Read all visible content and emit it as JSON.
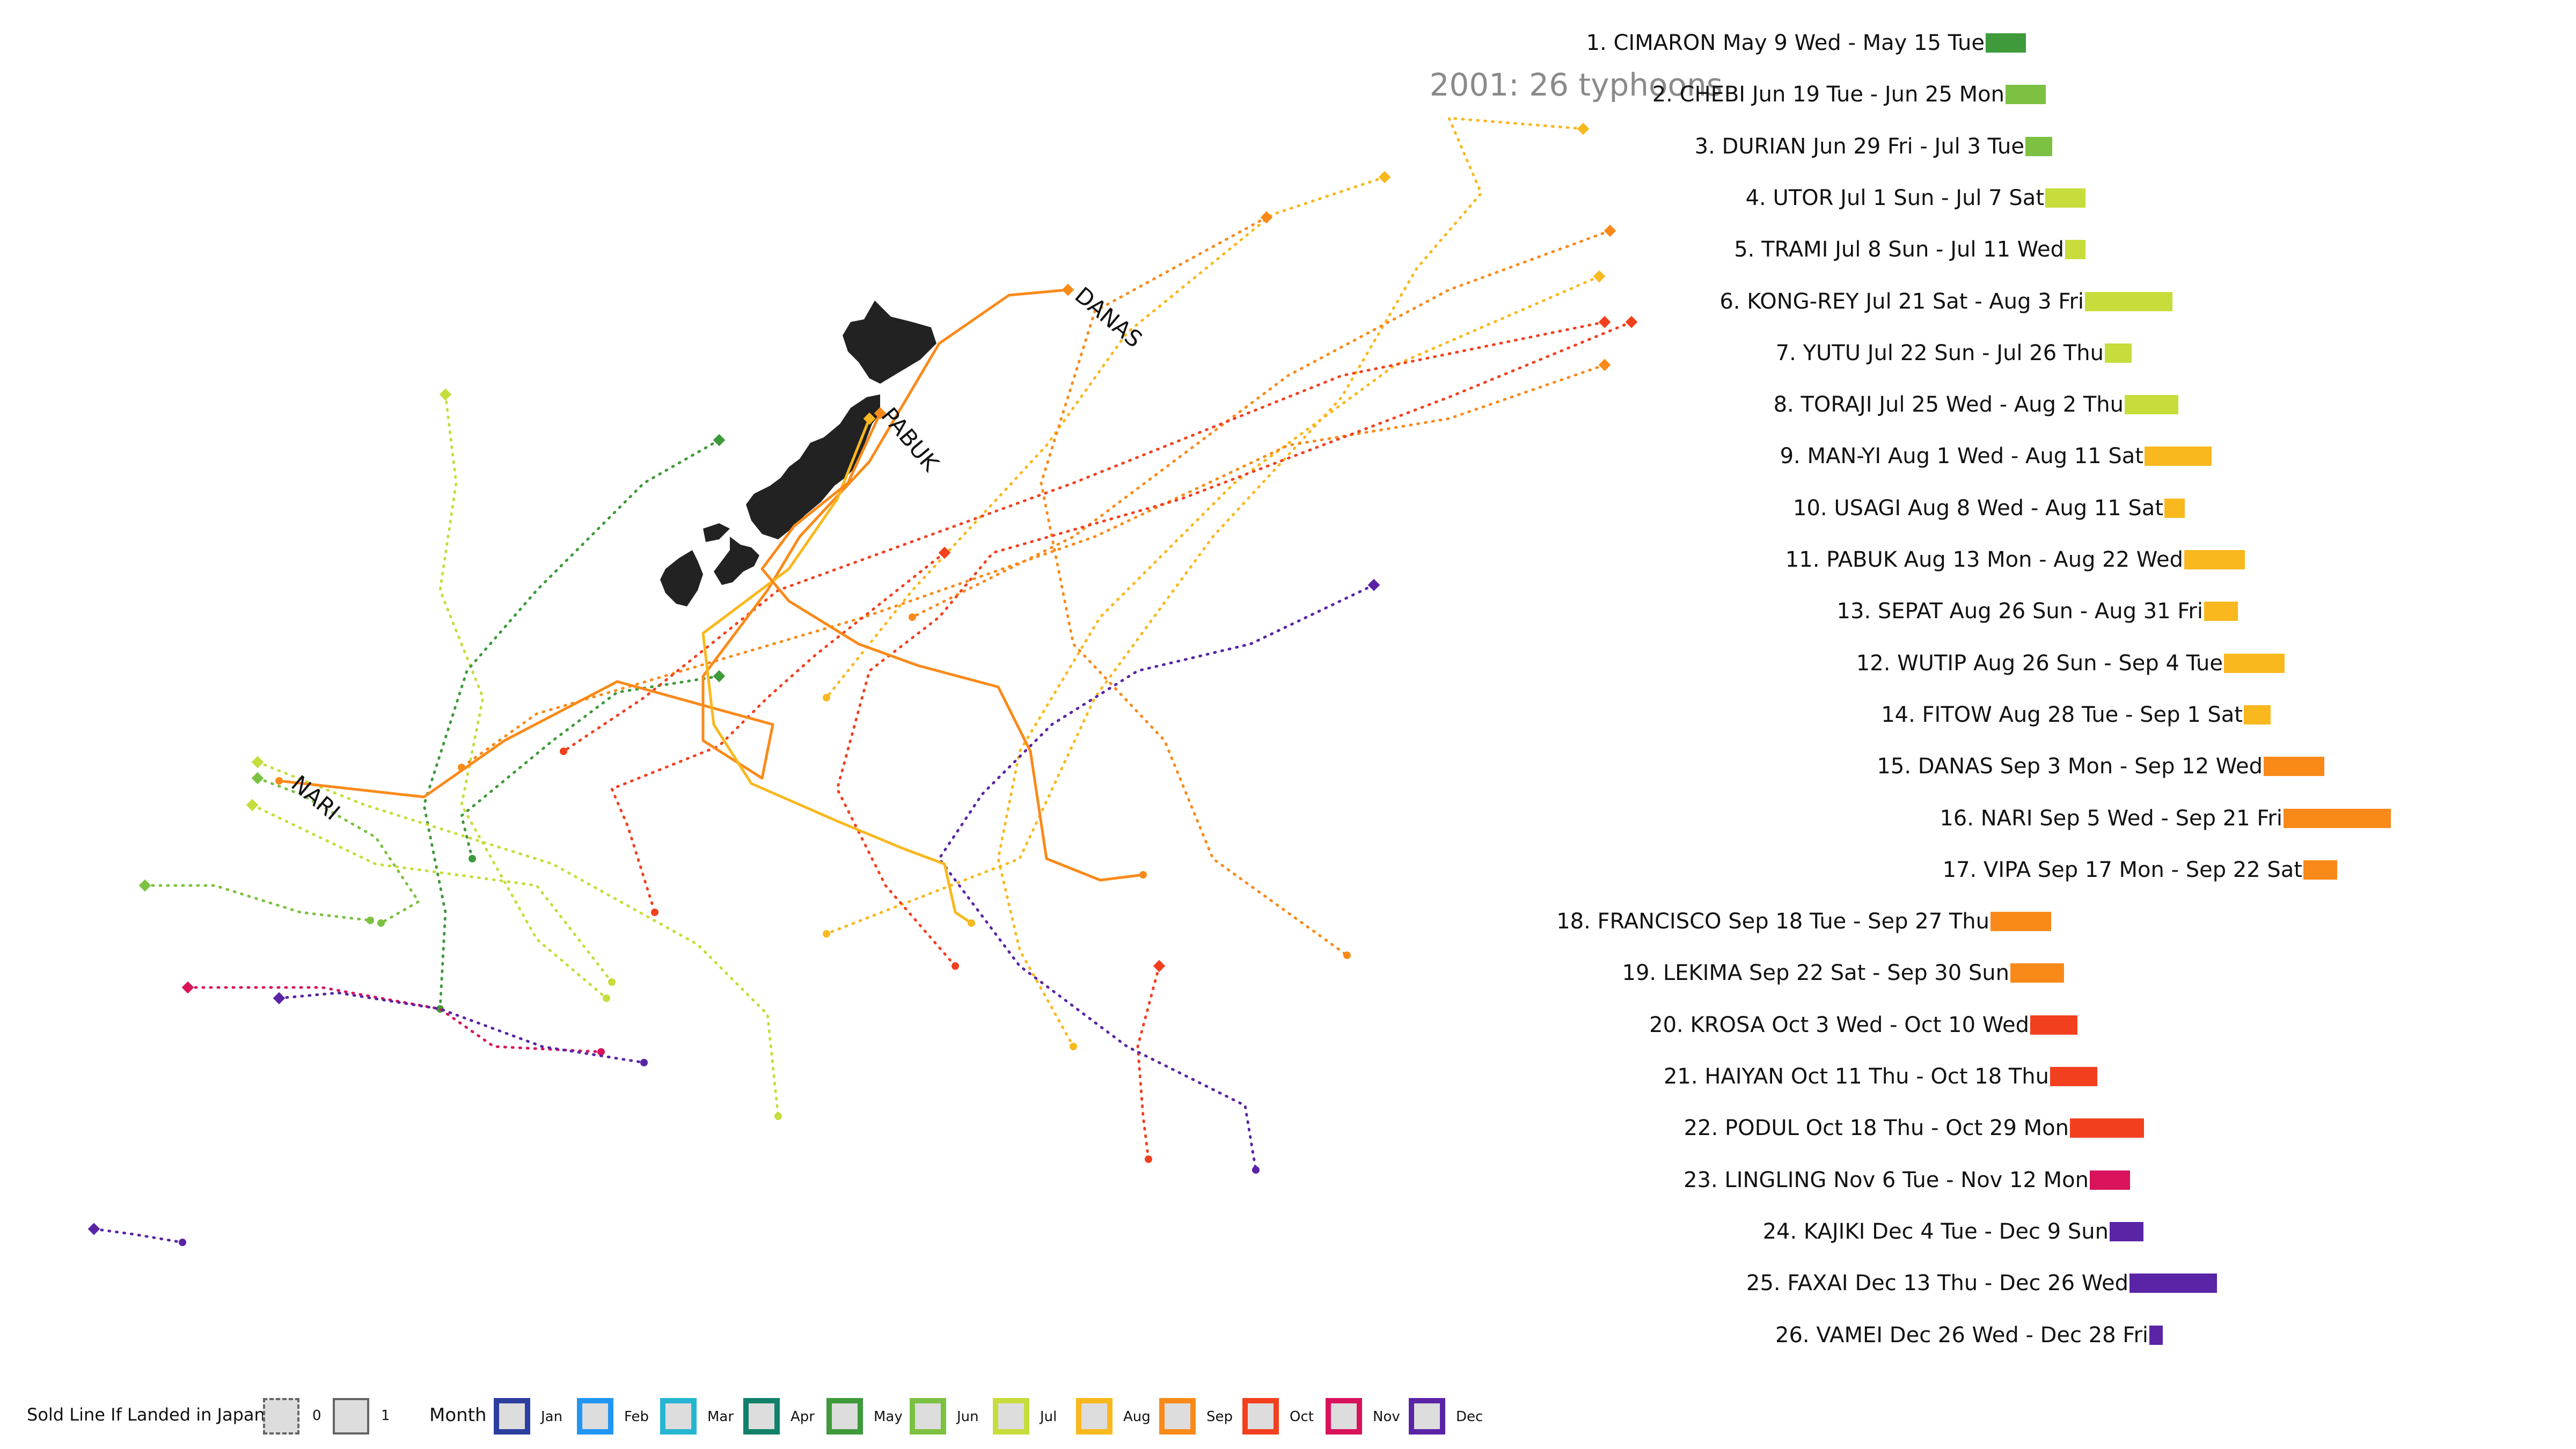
{
  "title": "2001: 26 typhoons",
  "colors": {
    "land": "#222222",
    "title_text": "#8a8a8a",
    "months": {
      "Jan": "#2c3e9e",
      "Feb": "#2196f3",
      "Mar": "#26b5d0",
      "Apr": "#11806a",
      "May": "#3e9a3a",
      "Jun": "#7cc142",
      "Jul": "#c8dc3c",
      "Aug": "#f8b81e",
      "Sep": "#f98a1a",
      "Oct": "#f2401f",
      "Nov": "#d9135c",
      "Dec": "#5a24a6"
    }
  },
  "map_labels": [
    "DANAS",
    "PABUK",
    "NARI"
  ],
  "typhoons": [
    {
      "label": "1. CIMARON May  9 Wed - May 15 Tue",
      "month": "May",
      "days": 6
    },
    {
      "label": "2. CHEBI Jun 19 Tue - Jun 25 Mon",
      "month": "Jun",
      "days": 6
    },
    {
      "label": "3. DURIAN Jun 29 Fri - Jul  3 Tue",
      "month": "Jun",
      "days": 4
    },
    {
      "label": "4. UTOR Jul  1 Sun - Jul  7 Sat",
      "month": "Jul",
      "days": 6
    },
    {
      "label": "5. TRAMI Jul  8 Sun - Jul 11 Wed",
      "month": "Jul",
      "days": 3
    },
    {
      "label": "6. KONG-REY Jul 21 Sat - Aug  3 Fri",
      "month": "Jul",
      "days": 13
    },
    {
      "label": "7. YUTU Jul 22 Sun - Jul 26 Thu",
      "month": "Jul",
      "days": 4
    },
    {
      "label": "8. TORAJI Jul 25 Wed - Aug  2 Thu",
      "month": "Jul",
      "days": 8
    },
    {
      "label": "9. MAN-YI Aug  1 Wed - Aug 11 Sat",
      "month": "Aug",
      "days": 10
    },
    {
      "label": "10. USAGI Aug  8 Wed - Aug 11 Sat",
      "month": "Aug",
      "days": 3
    },
    {
      "label": "11. PABUK Aug 13 Mon - Aug 22 Wed",
      "month": "Aug",
      "days": 9
    },
    {
      "label": "13. SEPAT Aug 26 Sun - Aug 31 Fri",
      "month": "Aug",
      "days": 5
    },
    {
      "label": "12. WUTIP Aug 26 Sun - Sep  4 Tue",
      "month": "Aug",
      "days": 9
    },
    {
      "label": "14. FITOW Aug 28 Tue - Sep  1 Sat",
      "month": "Aug",
      "days": 4
    },
    {
      "label": "15. DANAS Sep  3 Mon - Sep 12 Wed",
      "month": "Sep",
      "days": 9
    },
    {
      "label": "16. NARI Sep  5 Wed - Sep 21 Fri",
      "month": "Sep",
      "days": 16
    },
    {
      "label": "17. VIPA Sep 17 Mon - Sep 22 Sat",
      "month": "Sep",
      "days": 5
    },
    {
      "label": "18. FRANCISCO Sep 18 Tue - Sep 27 Thu",
      "month": "Sep",
      "days": 9
    },
    {
      "label": "19. LEKIMA Sep 22 Sat - Sep 30 Sun",
      "month": "Sep",
      "days": 8
    },
    {
      "label": "20. KROSA Oct  3 Wed - Oct 10 Wed",
      "month": "Oct",
      "days": 7
    },
    {
      "label": "21. HAIYAN Oct 11 Thu - Oct 18 Thu",
      "month": "Oct",
      "days": 7
    },
    {
      "label": "22. PODUL Oct 18 Thu - Oct 29 Mon",
      "month": "Oct",
      "days": 11
    },
    {
      "label": "23. LINGLING Nov  6 Tue - Nov 12 Mon",
      "month": "Nov",
      "days": 6
    },
    {
      "label": "24. KAJIKI Dec  4 Tue - Dec  9 Sun",
      "month": "Dec",
      "days": 5
    },
    {
      "label": "25. FAXAI Dec 13 Thu - Dec 26 Wed",
      "month": "Dec",
      "days": 13
    },
    {
      "label": "26. VAMEI Dec 26 Wed - Dec 28 Fri",
      "month": "Dec",
      "days": 2
    }
  ],
  "legend": {
    "landed_label": "Sold Line If Landed in Japan",
    "landed_values": [
      "0",
      "1"
    ],
    "month_label": "Month",
    "months": [
      "Jan",
      "Feb",
      "Mar",
      "Apr",
      "May",
      "Jun",
      "Jul",
      "Aug",
      "Sep",
      "Oct",
      "Nov",
      "Dec"
    ]
  }
}
